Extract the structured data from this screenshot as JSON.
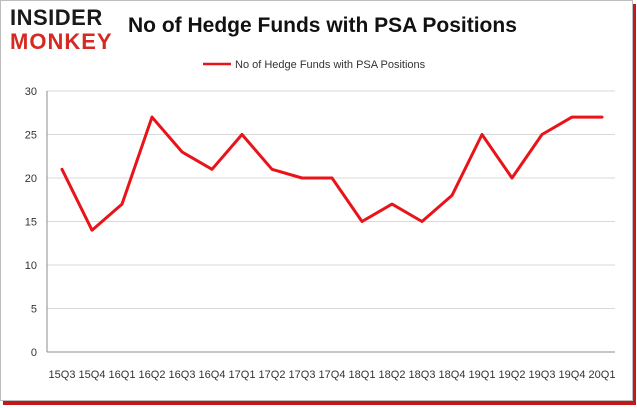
{
  "logo": {
    "line1": "INSIDER",
    "line2": "MONKEY"
  },
  "colors": {
    "series": "#e8141a",
    "grid": "#d9d9d9",
    "brand_red": "#d42a23"
  },
  "chart_data": {
    "type": "line",
    "title": "No of Hedge Funds with PSA Positions",
    "xlabel": "",
    "ylabel": "",
    "ylim": [
      0,
      30
    ],
    "yticks": [
      0,
      5,
      10,
      15,
      20,
      25,
      30
    ],
    "grid": true,
    "legend_position": "top-center",
    "x_tick_labels": [
      "15Q3",
      "15Q4",
      "16Q1",
      "16Q2",
      "16Q3",
      "16Q4",
      "17Q1",
      "17Q2",
      "17Q3",
      "17Q4",
      "18Q1",
      "18Q2",
      "18Q3",
      "18Q4",
      "19Q1",
      "19Q2",
      "19Q3",
      "19Q4",
      "20Q1"
    ],
    "categories": [
      "2015Q3",
      "2015Q4",
      "2016Q1",
      "2016Q2",
      "2016Q3",
      "2016Q4",
      "2017Q1",
      "2017Q2",
      "2017Q3",
      "2017Q4",
      "2018Q1",
      "2018Q2",
      "2018Q3",
      "2018Q4",
      "2019Q1",
      "2019Q2",
      "2019Q3",
      "2019Q4",
      "2020Q1"
    ],
    "series": [
      {
        "name": "No of Hedge Funds with PSA Positions",
        "values": [
          21,
          14,
          17,
          27,
          23,
          21,
          25,
          21,
          20,
          20,
          15,
          17,
          15,
          18,
          25,
          20,
          25,
          27,
          27
        ]
      }
    ]
  }
}
